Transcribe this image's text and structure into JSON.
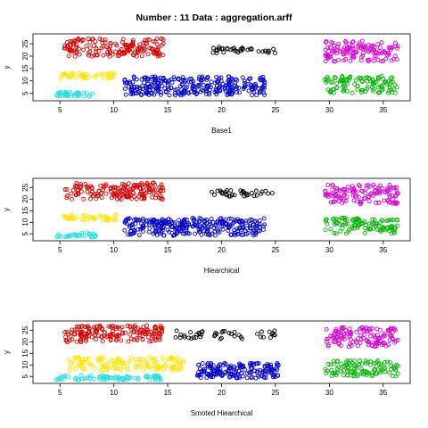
{
  "title": "Number : 11   Data : aggregation.arff",
  "cluster_colors": {
    "red": "#d40000",
    "yellow": "#ffe400",
    "cyan": "#22dede",
    "blue": "#0000c8",
    "black": "#000000",
    "magenta": "#d400d4",
    "green": "#00b400"
  },
  "chart_data": [
    {
      "type": "scatter",
      "name": "panel-base1",
      "xlabel": "Base1",
      "ylabel": "y",
      "xlim": [
        2.5,
        37.5
      ],
      "ylim": [
        2,
        29
      ],
      "xticks": [
        5,
        10,
        15,
        20,
        25,
        30,
        35
      ],
      "yticks": [
        5,
        10,
        15,
        20,
        25
      ],
      "clusters": [
        {
          "color": "red",
          "n": 170,
          "center": [
            10,
            23.5
          ],
          "spread": [
            4.6,
            3.6
          ]
        },
        {
          "color": "yellow",
          "n": 45,
          "center": [
            7.5,
            12
          ],
          "spread": [
            2.6,
            1.2
          ]
        },
        {
          "color": "cyan",
          "n": 35,
          "center": [
            6.5,
            4.5
          ],
          "spread": [
            1.8,
            1.0
          ]
        },
        {
          "color": "blue",
          "n": 300,
          "center": [
            17.5,
            8
          ],
          "spread": [
            6.5,
            3.8
          ]
        },
        {
          "color": "black",
          "n": 35,
          "center": [
            22,
            22.5
          ],
          "spread": [
            3.0,
            1.3
          ]
        },
        {
          "color": "magenta",
          "n": 130,
          "center": [
            33,
            22
          ],
          "spread": [
            3.4,
            4.2
          ]
        },
        {
          "color": "green",
          "n": 110,
          "center": [
            33,
            8.5
          ],
          "spread": [
            3.4,
            3.4
          ]
        }
      ]
    },
    {
      "type": "scatter",
      "name": "panel-hierarchical",
      "xlabel": "Hiearchical",
      "ylabel": "y",
      "xlim": [
        2.5,
        37.5
      ],
      "ylim": [
        2,
        29
      ],
      "xticks": [
        5,
        10,
        15,
        20,
        25,
        30,
        35
      ],
      "yticks": [
        5,
        10,
        15,
        20,
        25
      ],
      "clusters": [
        {
          "color": "red",
          "n": 170,
          "center": [
            10,
            23.5
          ],
          "spread": [
            4.6,
            3.6
          ]
        },
        {
          "color": "yellow",
          "n": 45,
          "center": [
            7.8,
            12
          ],
          "spread": [
            2.6,
            1.2
          ]
        },
        {
          "color": "cyan",
          "n": 35,
          "center": [
            6.5,
            4.5
          ],
          "spread": [
            1.8,
            1.0
          ]
        },
        {
          "color": "blue",
          "n": 300,
          "center": [
            17.5,
            8
          ],
          "spread": [
            6.5,
            3.8
          ]
        },
        {
          "color": "black",
          "n": 35,
          "center": [
            22,
            22.5
          ],
          "spread": [
            3.0,
            1.3
          ]
        },
        {
          "color": "magenta",
          "n": 130,
          "center": [
            33,
            22
          ],
          "spread": [
            3.4,
            4.2
          ]
        },
        {
          "color": "green",
          "n": 110,
          "center": [
            33,
            8.5
          ],
          "spread": [
            3.4,
            3.4
          ]
        }
      ]
    },
    {
      "type": "scatter",
      "name": "panel-smoted-hierarchical",
      "xlabel": "Smoted Hiearchical",
      "ylabel": "y",
      "xlim": [
        2.5,
        37.5
      ],
      "ylim": [
        2,
        29
      ],
      "xticks": [
        5,
        10,
        15,
        20,
        25,
        30,
        35
      ],
      "yticks": [
        5,
        10,
        15,
        20,
        25
      ],
      "clusters": [
        {
          "color": "red",
          "n": 170,
          "center": [
            10,
            23.5
          ],
          "spread": [
            4.6,
            3.6
          ]
        },
        {
          "color": "yellow",
          "n": 140,
          "center": [
            11,
            10.5
          ],
          "spread": [
            5.5,
            2.8
          ]
        },
        {
          "color": "cyan",
          "n": 80,
          "center": [
            9.5,
            4.5
          ],
          "spread": [
            5.0,
            1.0
          ]
        },
        {
          "color": "blue",
          "n": 180,
          "center": [
            21.5,
            7.5
          ],
          "spread": [
            3.8,
            3.3
          ]
        },
        {
          "color": "black",
          "n": 45,
          "center": [
            20,
            23
          ],
          "spread": [
            5.0,
            2.0
          ]
        },
        {
          "color": "magenta",
          "n": 130,
          "center": [
            33,
            22
          ],
          "spread": [
            3.4,
            4.2
          ]
        },
        {
          "color": "green",
          "n": 110,
          "center": [
            33,
            8.5
          ],
          "spread": [
            3.4,
            3.4
          ]
        }
      ]
    }
  ]
}
